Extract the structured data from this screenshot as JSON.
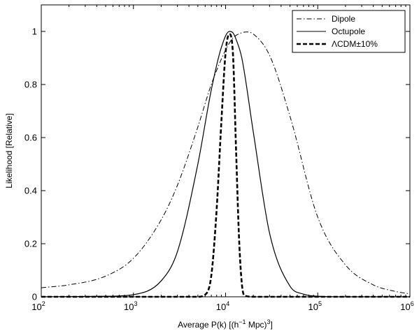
{
  "chart_data": {
    "type": "line",
    "xscale": "log",
    "xlim": [
      100,
      1000000
    ],
    "ylim": [
      0,
      1.1
    ],
    "xticks": [
      {
        "base": "10",
        "exp": "2"
      },
      {
        "base": "10",
        "exp": "3"
      },
      {
        "base": "10",
        "exp": "4"
      },
      {
        "base": "10",
        "exp": "5"
      },
      {
        "base": "10",
        "exp": "6"
      }
    ],
    "yticks": [
      "0",
      "0.2",
      "0.4",
      "0.6",
      "0.8",
      "1"
    ],
    "xlabel": {
      "main": "Average P(k) [(h",
      "sup1": "−1",
      "mid": " Mpc)",
      "sup2": "3",
      "end": "]"
    },
    "ylabel": "Likelihood [Relative]",
    "grid": false,
    "legend_position": "top-right",
    "series": [
      {
        "name": "Dipole",
        "style": "dash-dot",
        "color": "#000000",
        "x": [
          100,
          200,
          500,
          1000,
          2000,
          3000,
          5000,
          7000,
          10000,
          12000,
          15000,
          17000,
          20000,
          30000,
          50000,
          100000,
          200000,
          400000,
          700000,
          1000000
        ],
        "y": [
          0.034,
          0.045,
          0.078,
          0.145,
          0.29,
          0.42,
          0.64,
          0.8,
          0.93,
          0.975,
          0.995,
          0.998,
          0.99,
          0.91,
          0.68,
          0.3,
          0.12,
          0.045,
          0.02,
          0.011
        ]
      },
      {
        "name": "Octupole",
        "style": "solid",
        "color": "#000000",
        "x": [
          100,
          500,
          1000,
          2000,
          3000,
          5000,
          7000,
          9000,
          11000,
          12000,
          13000,
          15000,
          20000,
          30000,
          50000,
          70000,
          100000,
          200000,
          1000000
        ],
        "y": [
          0.0,
          0.002,
          0.008,
          0.06,
          0.17,
          0.5,
          0.78,
          0.94,
          1.0,
          0.995,
          0.97,
          0.9,
          0.62,
          0.24,
          0.04,
          0.01,
          0.002,
          0.0,
          0.0
        ]
      },
      {
        "name": "ΛCDM±10%",
        "style": "dashed",
        "color": "#000000",
        "x": [
          100,
          5000,
          6000,
          7000,
          8000,
          9000,
          10000,
          11000,
          12000,
          13000,
          14000,
          15000,
          16000,
          20000,
          1000000
        ],
        "y": [
          0.0,
          0.0,
          0.008,
          0.08,
          0.33,
          0.66,
          0.92,
          0.99,
          0.92,
          0.55,
          0.22,
          0.05,
          0.005,
          0.0,
          0.0
        ]
      }
    ]
  }
}
